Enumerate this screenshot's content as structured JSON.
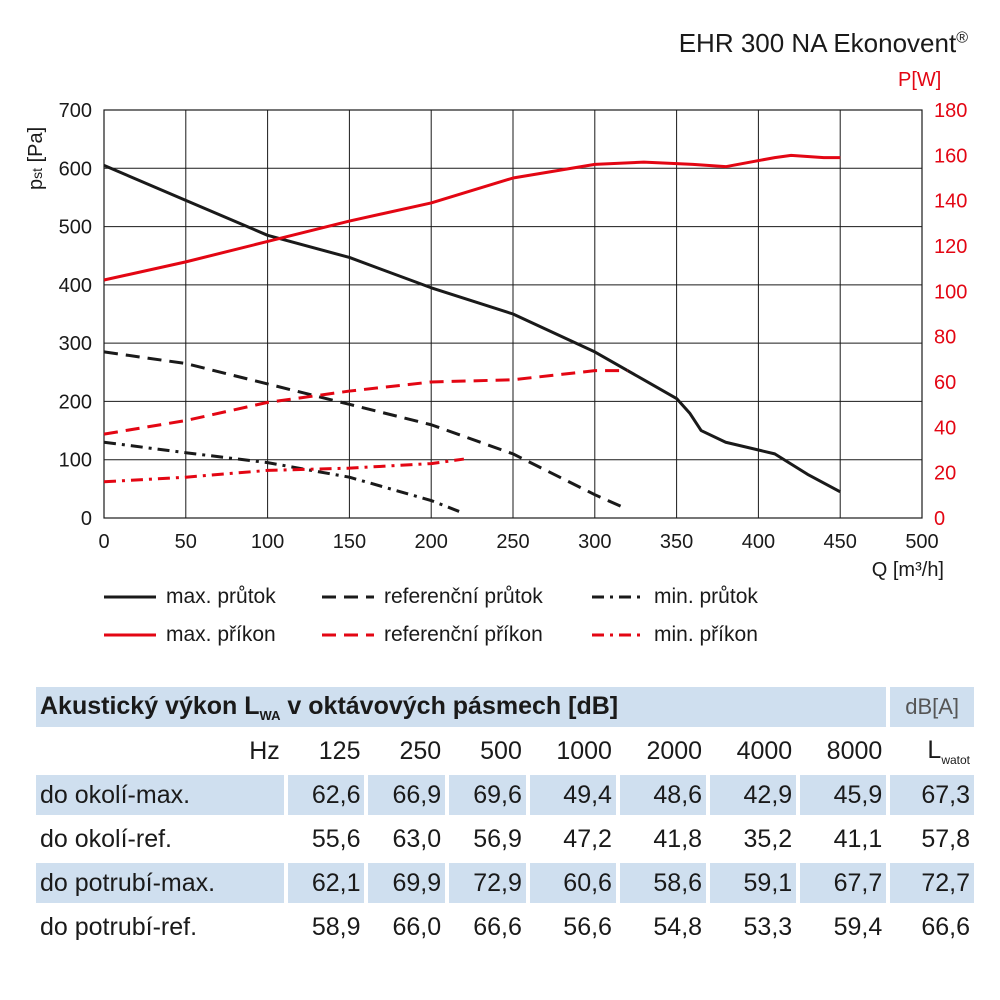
{
  "title": {
    "text": "EHR 300 NA Ekonovent",
    "reg": "®"
  },
  "chart_data": {
    "type": "line",
    "xlabel": "Q [m³/h]",
    "ylabel_left": "pst [Pa]",
    "ylabel_right": "P[W]",
    "xlim": [
      0,
      500
    ],
    "ylim_left": [
      0,
      700
    ],
    "ylim_right": [
      0,
      180
    ],
    "x_ticks": [
      "0",
      "50",
      "100",
      "150",
      "200",
      "250",
      "300",
      "350",
      "400",
      "450",
      "500"
    ],
    "y_left_ticks": [
      "0",
      "100",
      "200",
      "300",
      "400",
      "500",
      "600",
      "700"
    ],
    "y_right_ticks": [
      "0",
      "20",
      "40",
      "60",
      "80",
      "100",
      "120",
      "140",
      "160",
      "180"
    ],
    "grid": true,
    "colors": {
      "pressure": "#1a1a1a",
      "power": "#e30613"
    },
    "series": [
      {
        "name": "max. průtok",
        "axis": "left",
        "style": "solid",
        "color": "#1a1a1a",
        "x": [
          0,
          50,
          100,
          150,
          200,
          250,
          300,
          350,
          358,
          365,
          380,
          410,
          430,
          450
        ],
        "y": [
          605,
          545,
          485,
          447,
          395,
          350,
          285,
          205,
          180,
          150,
          130,
          110,
          75,
          45
        ]
      },
      {
        "name": "referenční průtok",
        "axis": "left",
        "style": "dashed",
        "color": "#1a1a1a",
        "x": [
          0,
          50,
          100,
          150,
          200,
          250,
          300,
          320
        ],
        "y": [
          285,
          265,
          230,
          195,
          160,
          110,
          40,
          15
        ]
      },
      {
        "name": "min. průtok",
        "axis": "left",
        "style": "dashdot",
        "color": "#1a1a1a",
        "x": [
          0,
          50,
          100,
          150,
          200,
          220
        ],
        "y": [
          130,
          112,
          95,
          70,
          30,
          8
        ]
      },
      {
        "name": "max. příkon",
        "axis": "right",
        "style": "solid",
        "color": "#e30613",
        "x": [
          0,
          50,
          100,
          150,
          200,
          250,
          300,
          330,
          360,
          380,
          410,
          420,
          440,
          450
        ],
        "y": [
          105,
          113,
          122,
          131,
          139,
          150,
          156,
          157,
          156,
          155,
          159,
          160,
          159,
          159
        ]
      },
      {
        "name": "referenční příkon",
        "axis": "right",
        "style": "dashed",
        "color": "#e30613",
        "x": [
          0,
          50,
          100,
          150,
          200,
          250,
          300,
          320
        ],
        "y": [
          37,
          43,
          51,
          56,
          60,
          61,
          65,
          65
        ]
      },
      {
        "name": "min. příkon",
        "axis": "right",
        "style": "dashdot",
        "color": "#e30613",
        "x": [
          0,
          50,
          100,
          150,
          200,
          220
        ],
        "y": [
          16,
          18,
          21,
          22,
          24,
          26
        ]
      }
    ]
  },
  "legend": [
    {
      "label": "max. průtok",
      "style": "solid",
      "color": "#1a1a1a"
    },
    {
      "label": "referenční průtok",
      "style": "dashed",
      "color": "#1a1a1a"
    },
    {
      "label": "min. průtok",
      "style": "dashdot",
      "color": "#1a1a1a"
    },
    {
      "label": "max. příkon",
      "style": "solid",
      "color": "#e30613"
    },
    {
      "label": "referenční příkon",
      "style": "dashed",
      "color": "#e30613"
    },
    {
      "label": "min. příkon",
      "style": "dashdot",
      "color": "#e30613"
    }
  ],
  "acoustic": {
    "title": "Akustický výkon L",
    "title_sub": "WA",
    "title_rest": " v oktávových pásmech [dB]",
    "unit": "dB[A]",
    "hz_label": "Hz",
    "frequencies": [
      "125",
      "250",
      "500",
      "1000",
      "2000",
      "4000",
      "8000"
    ],
    "total_label": "L",
    "total_sub": "watot",
    "rows": [
      {
        "label": "do okolí-max.",
        "values": [
          "62,6",
          "66,9",
          "69,6",
          "49,4",
          "48,6",
          "42,9",
          "45,9"
        ],
        "total": "67,3"
      },
      {
        "label": "do okolí-ref.",
        "values": [
          "55,6",
          "63,0",
          "56,9",
          "47,2",
          "41,8",
          "35,2",
          "41,1"
        ],
        "total": "57,8"
      },
      {
        "label": "do potrubí-max.",
        "values": [
          "62,1",
          "69,9",
          "72,9",
          "60,6",
          "58,6",
          "59,1",
          "67,7"
        ],
        "total": "72,7"
      },
      {
        "label": "do potrubí-ref.",
        "values": [
          "58,9",
          "66,0",
          "66,6",
          "56,6",
          "54,8",
          "53,3",
          "59,4"
        ],
        "total": "66,6"
      }
    ]
  }
}
